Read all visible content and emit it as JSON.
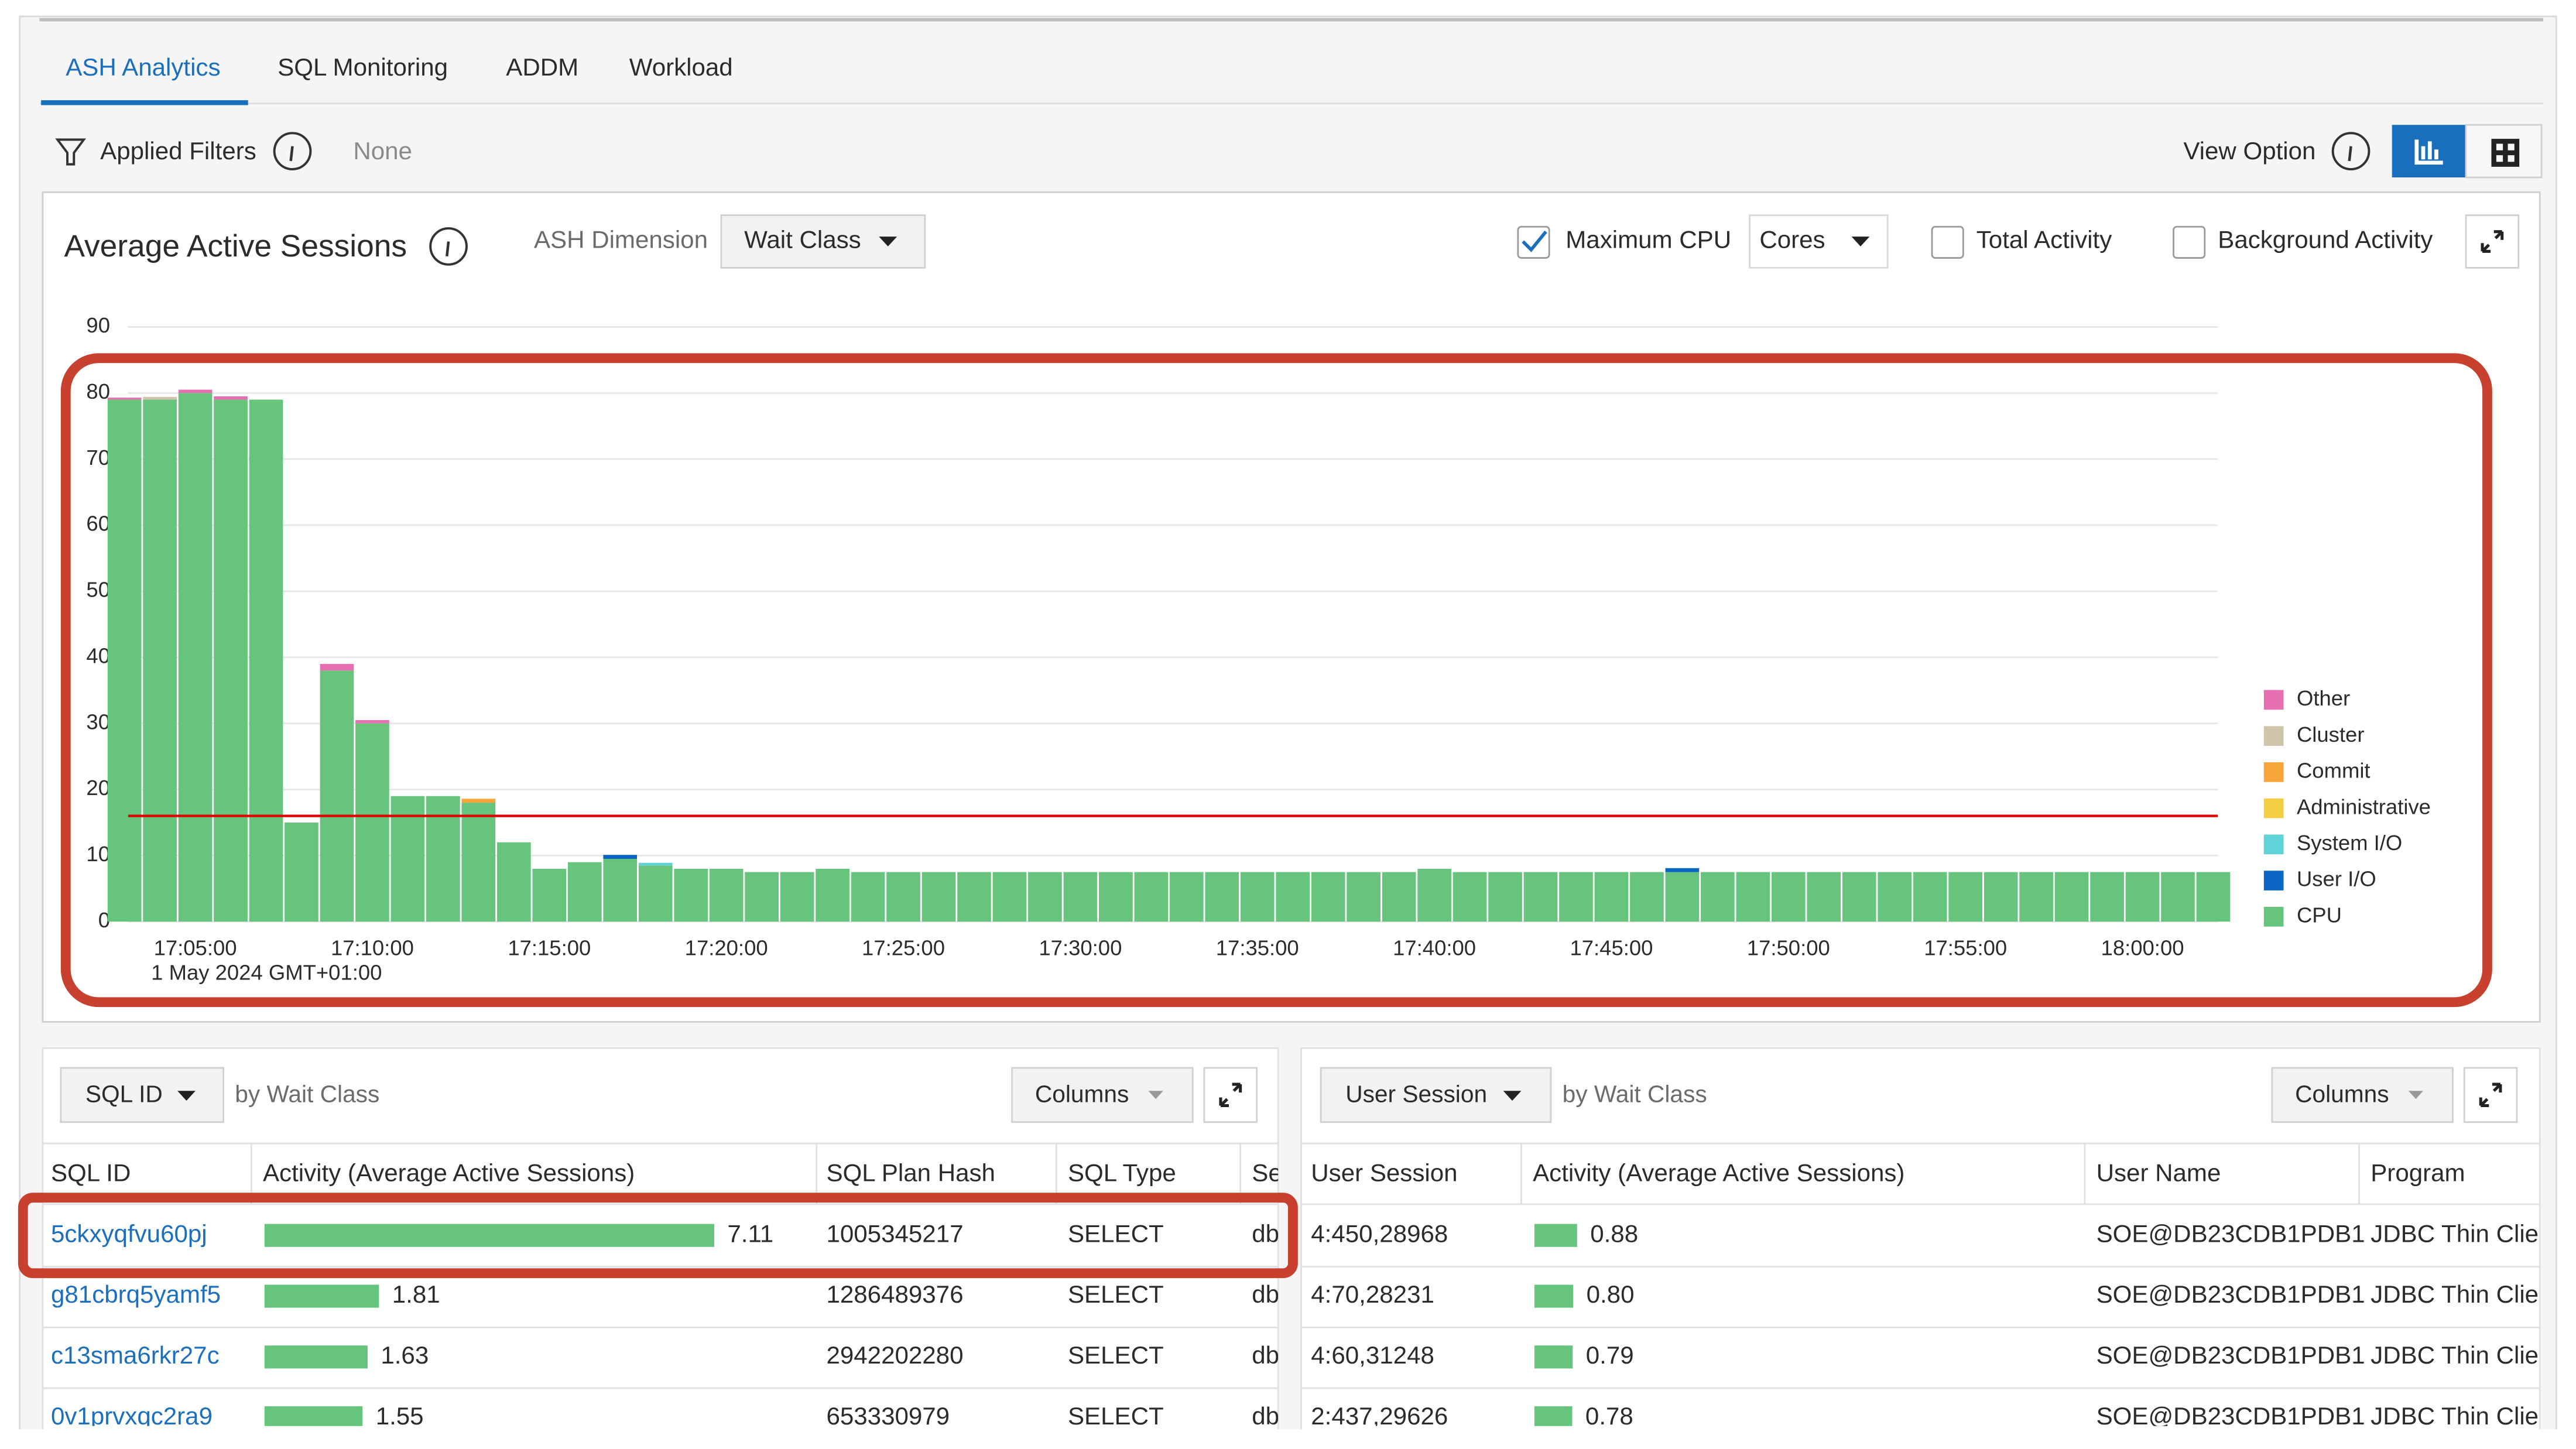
{
  "tabs": [
    "ASH Analytics",
    "SQL Monitoring",
    "ADDM",
    "Workload"
  ],
  "filters": {
    "label": "Applied Filters",
    "value": "None"
  },
  "view_option": "View Option",
  "chart_panel": {
    "title": "Average Active Sessions",
    "dimension_label": "ASH Dimension",
    "dimension": "Wait Class",
    "max_cpu_label": "Maximum CPU",
    "cores": "Cores",
    "total_activity": "Total Activity",
    "background_activity": "Background Activity"
  },
  "chart_data": {
    "type": "stacked_bar",
    "categories": [
      null,
      null,
      "17:05:00",
      null,
      null,
      null,
      null,
      "17:10:00",
      null,
      null,
      null,
      null,
      "17:15:00",
      null,
      null,
      null,
      null,
      "17:20:00",
      null,
      null,
      null,
      null,
      "17:25:00",
      null,
      null,
      null,
      null,
      "17:30:00",
      null,
      null,
      null,
      null,
      "17:35:00",
      null,
      null,
      null,
      null,
      "17:40:00",
      null,
      null,
      null,
      null,
      "17:45:00",
      null,
      null,
      null,
      null,
      "17:50:00",
      null,
      null,
      null,
      null,
      "17:55:00",
      null,
      null,
      null,
      null,
      "18:00:00",
      null,
      null
    ],
    "date_label": "1 May 2024 GMT+01:00",
    "series": [
      {
        "name": "CPU",
        "color": "#66c47c",
        "values": [
          79,
          79,
          80,
          79,
          79,
          15,
          38,
          30,
          19,
          19,
          18,
          12,
          8,
          9,
          9.5,
          8.5,
          8,
          8,
          7.5,
          7.5,
          8,
          7.5,
          7.5,
          7.5,
          7.5,
          7.5,
          7.5,
          7.5,
          7.5,
          7.5,
          7.5,
          7.5,
          7.5,
          7.5,
          7.5,
          7.5,
          7.5,
          8,
          7.5,
          7.5,
          7.5,
          7.5,
          7.5,
          7.5,
          7.5,
          7.5,
          7.5,
          7.5,
          7.5,
          7.5,
          7.5,
          7.5,
          7.5,
          7.5,
          7.5,
          7.5,
          7.5,
          7.5,
          7.5,
          7.5
        ]
      },
      {
        "name": "User I/O",
        "color": "#0b66c3",
        "values": [
          0,
          0,
          0,
          0,
          0,
          0,
          0,
          0,
          0,
          0,
          0,
          0,
          0,
          0,
          0.6,
          0,
          0,
          0,
          0,
          0,
          0,
          0,
          0,
          0,
          0,
          0,
          0,
          0,
          0,
          0,
          0,
          0,
          0,
          0,
          0,
          0,
          0,
          0,
          0,
          0,
          0,
          0,
          0,
          0,
          0.6,
          0,
          0,
          0,
          0,
          0,
          0,
          0,
          0,
          0,
          0,
          0,
          0,
          0,
          0,
          0
        ]
      },
      {
        "name": "System I/O",
        "color": "#5fd3d8",
        "values": [
          0,
          0,
          0,
          0,
          0,
          0,
          0,
          0,
          0,
          0,
          0,
          0,
          0,
          0,
          0,
          0.4,
          0,
          0,
          0,
          0,
          0,
          0,
          0,
          0,
          0,
          0,
          0,
          0,
          0,
          0,
          0,
          0,
          0,
          0,
          0,
          0,
          0,
          0,
          0,
          0,
          0,
          0,
          0,
          0,
          0,
          0,
          0,
          0,
          0,
          0,
          0,
          0,
          0,
          0,
          0,
          0,
          0,
          0,
          0,
          0
        ]
      },
      {
        "name": "Administrative",
        "color": "#f5cd43",
        "values": [
          0,
          0,
          0,
          0,
          0,
          0,
          0,
          0,
          0,
          0,
          0,
          0,
          0,
          0,
          0,
          0,
          0,
          0,
          0,
          0,
          0,
          0,
          0,
          0,
          0,
          0,
          0,
          0,
          0,
          0,
          0,
          0,
          0,
          0,
          0,
          0,
          0,
          0,
          0,
          0,
          0,
          0,
          0,
          0,
          0,
          0,
          0,
          0,
          0,
          0,
          0,
          0,
          0,
          0,
          0,
          0,
          0,
          0,
          0,
          0
        ]
      },
      {
        "name": "Commit",
        "color": "#f7a539",
        "values": [
          0,
          0,
          0,
          0,
          0,
          0,
          0,
          0,
          0,
          0,
          0.6,
          0,
          0,
          0,
          0,
          0,
          0,
          0,
          0,
          0,
          0,
          0,
          0,
          0,
          0,
          0,
          0,
          0,
          0,
          0,
          0,
          0,
          0,
          0,
          0,
          0,
          0,
          0,
          0,
          0,
          0,
          0,
          0,
          0,
          0,
          0,
          0,
          0,
          0,
          0,
          0,
          0,
          0,
          0,
          0,
          0,
          0,
          0,
          0,
          0
        ]
      },
      {
        "name": "Cluster",
        "color": "#cfc4aa",
        "values": [
          0,
          0.4,
          0,
          0,
          0,
          0,
          0,
          0,
          0,
          0,
          0,
          0,
          0,
          0,
          0,
          0,
          0,
          0,
          0,
          0,
          0,
          0,
          0,
          0,
          0,
          0,
          0,
          0,
          0,
          0,
          0,
          0,
          0,
          0,
          0,
          0,
          0,
          0,
          0,
          0,
          0,
          0,
          0,
          0,
          0,
          0,
          0,
          0,
          0,
          0,
          0,
          0,
          0,
          0,
          0,
          0,
          0,
          0,
          0,
          0
        ]
      },
      {
        "name": "Other",
        "color": "#e56fb0",
        "values": [
          0.3,
          0,
          0.5,
          0.5,
          0,
          0,
          1,
          0.5,
          0,
          0,
          0,
          0,
          0,
          0,
          0,
          0,
          0,
          0,
          0,
          0,
          0,
          0,
          0,
          0,
          0,
          0,
          0,
          0,
          0,
          0,
          0,
          0,
          0,
          0,
          0,
          0,
          0,
          0,
          0,
          0,
          0,
          0,
          0,
          0,
          0,
          0,
          0,
          0,
          0,
          0,
          0,
          0,
          0,
          0,
          0,
          0,
          0,
          0,
          0,
          0
        ]
      }
    ],
    "reference_line": {
      "value": 16,
      "color": "#e00000"
    },
    "ylim": [
      0,
      90
    ],
    "yticks": [
      0,
      10,
      20,
      30,
      40,
      50,
      60,
      70,
      80,
      90
    ],
    "grid": true,
    "legend": "right"
  },
  "sql_table": {
    "selector": "SQL ID",
    "by": "by Wait Class",
    "columns_button": "Columns",
    "headers": [
      "SQL ID",
      "Activity (Average Active Sessions)",
      "SQL Plan Hash",
      "SQL Type",
      "Se"
    ],
    "ids": [
      "5ckxyqfvu60pj",
      "g81cbrq5yamf5",
      "c13sma6rkr27c",
      "0v1prvxqc2ra9"
    ],
    "activity": [
      7.11,
      1.81,
      1.63,
      1.55
    ],
    "plan_hash": [
      "1005345217",
      "1286489376",
      "2942202280",
      "653330979"
    ],
    "sql_type": [
      "SELECT",
      "SELECT",
      "SELECT",
      "SELECT"
    ],
    "se": [
      "db",
      "db",
      "db",
      "db"
    ]
  },
  "session_table": {
    "selector": "User Session",
    "by": "by Wait Class",
    "columns_button": "Columns",
    "headers": [
      "User Session",
      "Activity (Average Active Sessions)",
      "User Name",
      "Program"
    ],
    "sessions": [
      "4:450,28968",
      "4:70,28231",
      "4:60,31248",
      "2:437,29626"
    ],
    "activity": [
      0.88,
      0.8,
      0.79,
      0.78
    ],
    "activity_labels": [
      "0.88",
      "0.80",
      "0.79",
      "0.78"
    ],
    "user_names": [
      "SOE@DB23CDB1PDB1",
      "SOE@DB23CDB1PDB1",
      "SOE@DB23CDB1PDB1",
      "SOE@DB23CDB1PDB1"
    ],
    "programs": [
      "JDBC Thin Clie",
      "JDBC Thin Clie",
      "JDBC Thin Clie",
      "JDBC Thin Clie"
    ]
  }
}
